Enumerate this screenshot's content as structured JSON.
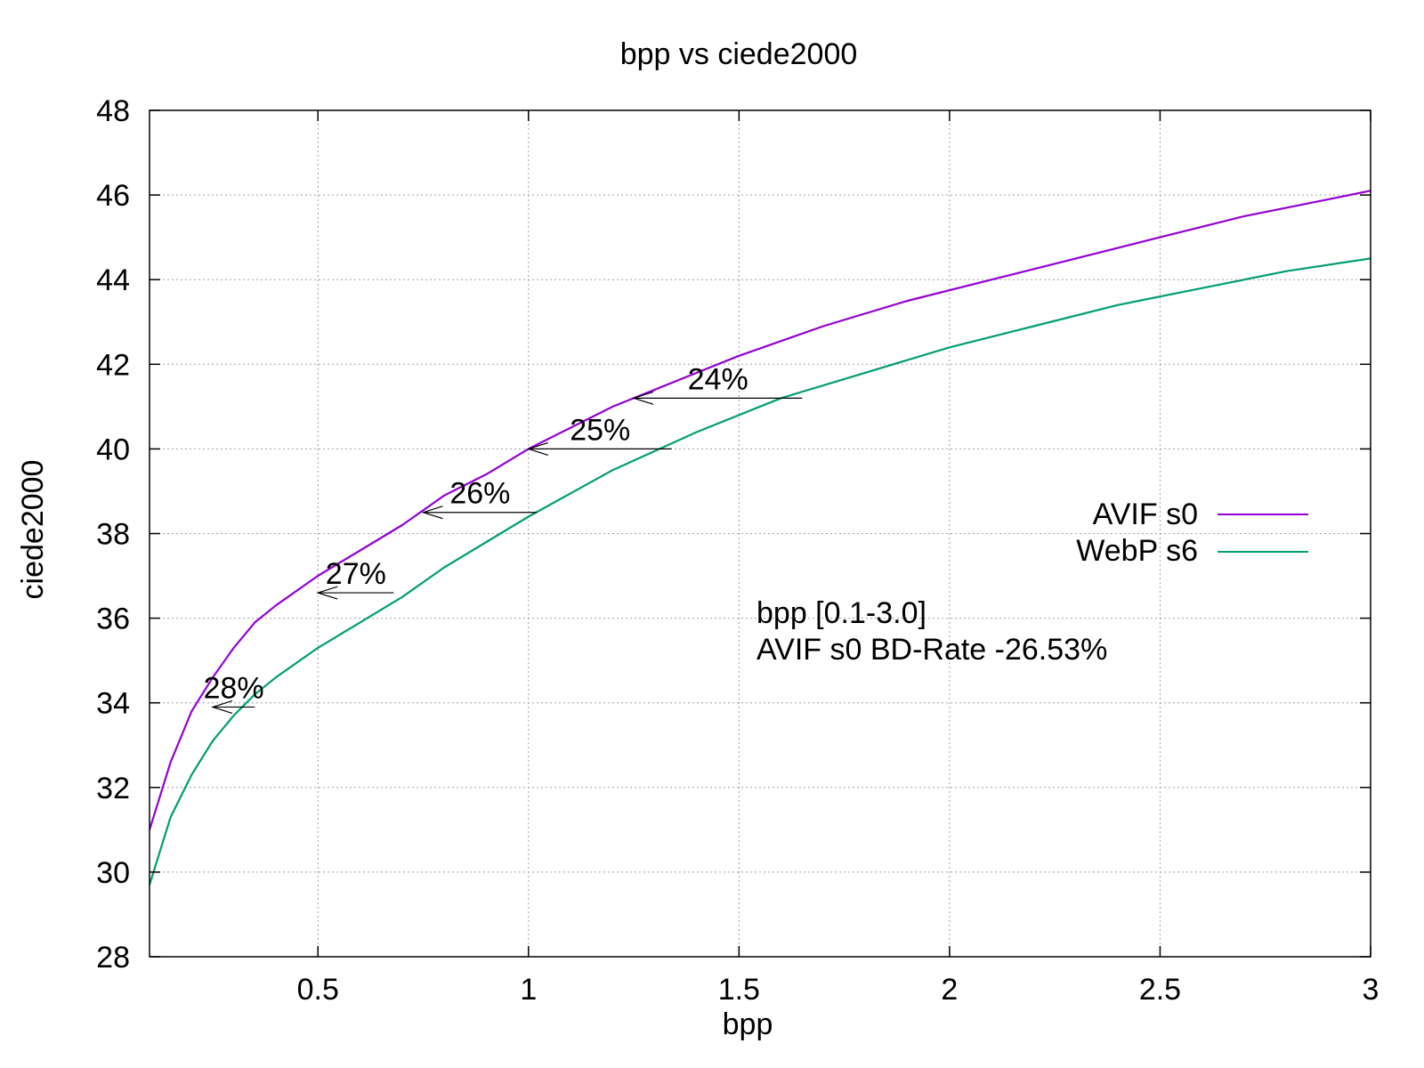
{
  "chart_data": {
    "type": "line",
    "title": "bpp vs ciede2000",
    "xlabel": "bpp",
    "ylabel": "ciede2000",
    "xlim": [
      0.1,
      3.0
    ],
    "ylim": [
      28,
      48
    ],
    "xticks": [
      0.5,
      1,
      1.5,
      2,
      2.5,
      3
    ],
    "xtick_labels": [
      "0.5",
      "1",
      "1.5",
      "2",
      "2.5",
      "3"
    ],
    "yticks": [
      28,
      30,
      32,
      34,
      36,
      38,
      40,
      42,
      44,
      46,
      48
    ],
    "ytick_labels": [
      "28",
      "30",
      "32",
      "34",
      "36",
      "38",
      "40",
      "42",
      "44",
      "46",
      "48"
    ],
    "grid": true,
    "legend_position": "right",
    "series": [
      {
        "name": "AVIF s0",
        "color": "#9400d3",
        "x": [
          0.1,
          0.15,
          0.2,
          0.25,
          0.3,
          0.35,
          0.4,
          0.5,
          0.6,
          0.7,
          0.8,
          0.9,
          1.0,
          1.1,
          1.2,
          1.3,
          1.5,
          1.7,
          1.9,
          2.1,
          2.3,
          2.5,
          2.7,
          2.9,
          3.0
        ],
        "y": [
          31.0,
          32.6,
          33.8,
          34.6,
          35.3,
          35.9,
          36.3,
          37.0,
          37.6,
          38.2,
          38.9,
          39.4,
          40.0,
          40.5,
          41.0,
          41.4,
          42.2,
          42.9,
          43.5,
          44.0,
          44.5,
          45.0,
          45.5,
          45.9,
          46.1
        ]
      },
      {
        "name": "WebP s6",
        "color": "#009e73",
        "x": [
          0.1,
          0.15,
          0.2,
          0.25,
          0.3,
          0.35,
          0.4,
          0.5,
          0.6,
          0.7,
          0.8,
          0.9,
          1.0,
          1.2,
          1.4,
          1.6,
          1.8,
          2.0,
          2.2,
          2.4,
          2.6,
          2.8,
          3.0
        ],
        "y": [
          29.7,
          31.3,
          32.3,
          33.1,
          33.7,
          34.2,
          34.6,
          35.3,
          35.9,
          36.5,
          37.2,
          37.8,
          38.4,
          39.5,
          40.4,
          41.2,
          41.8,
          42.4,
          42.9,
          43.4,
          43.8,
          44.2,
          44.5
        ]
      }
    ],
    "annotations": [
      {
        "label": "24%",
        "y": 41.2,
        "x_from": 1.65,
        "x_to": 1.25
      },
      {
        "label": "25%",
        "y": 40.0,
        "x_from": 1.34,
        "x_to": 1.0
      },
      {
        "label": "26%",
        "y": 38.5,
        "x_from": 1.02,
        "x_to": 0.75
      },
      {
        "label": "27%",
        "y": 36.6,
        "x_from": 0.68,
        "x_to": 0.5
      },
      {
        "label": "28%",
        "y": 33.9,
        "x_from": 0.35,
        "x_to": 0.25
      }
    ],
    "note": {
      "color": "#00ff00",
      "lines": [
        "bpp [0.1-3.0]",
        "AVIF s0 BD-Rate -26.53%"
      ]
    }
  }
}
